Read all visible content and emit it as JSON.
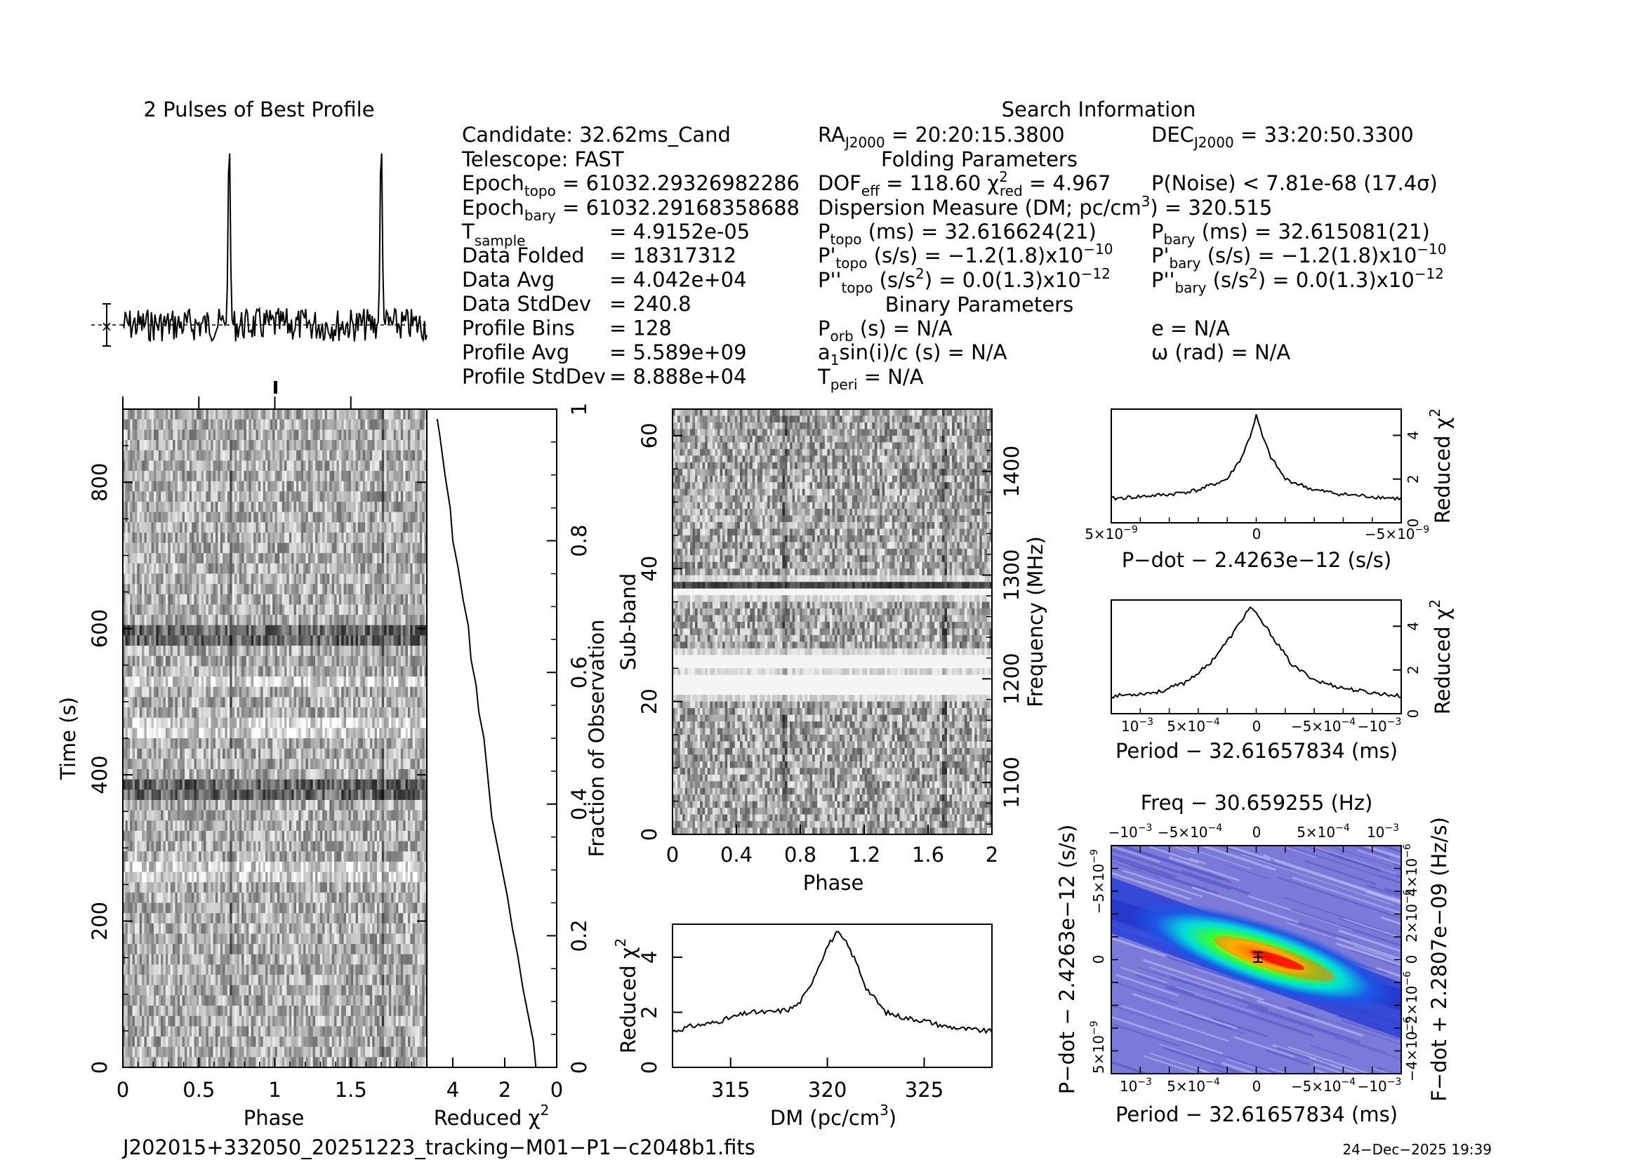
{
  "prof": {
    "title": "2 Pulses of Best Profile"
  },
  "info": {
    "title": "Search Information",
    "candidate": "Candidate:  32.62ms_Cand",
    "telescope": "Telescope:  FAST",
    "epoch_topo_lbl": "Epoch",
    "epoch_topo_sub": "topo",
    "epoch_topo_val": " = 61032.29326982286",
    "epoch_bary_lbl": "Epoch",
    "epoch_bary_sub": "bary",
    "epoch_bary_val": " = 61032.29168358688",
    "tsample_lbl": "T",
    "tsample_sub": "sample",
    "tsample_val": "=  4.9152e-05",
    "rows": [
      {
        "name": "Data Folded",
        "value": "=  18317312"
      },
      {
        "name": "Data Avg",
        "value": "=  4.042e+04"
      },
      {
        "name": "Data StdDev",
        "value": "=  240.8"
      },
      {
        "name": "Profile Bins",
        "value": "=  128"
      },
      {
        "name": "Profile Avg",
        "value": "=  5.589e+09"
      },
      {
        "name": "Profile StdDev",
        "value": "=  8.888e+04"
      }
    ],
    "ra_lbl": "RA",
    "ra_sub": "J2000",
    "ra_val": " = 20:20:15.3800",
    "dec_lbl": "DEC",
    "dec_sub": "J2000",
    "dec_val": " = 33:20:50.3300",
    "folding_title": "Folding Parameters",
    "dof_lbl": "DOF",
    "dof_sub": "eff",
    "dof_val": " = 118.60  ",
    "chi_lbl": "χ",
    "chi_sup": "2",
    "chi_sub": "red",
    "chi_val": " = 4.967",
    "pnoise": "P(Noise) < 7.81e-68   (17.4σ)",
    "dm_line": "Dispersion Measure (DM; pc/cm",
    "dm_sup": "3",
    "dm_val": ") = 320.515",
    "ptopo_lbl": "P",
    "ptopo_sub": "topo",
    "ptopo_val": " (ms) =  32.616624(21)",
    "pbary_lbl": "P",
    "pbary_sub": "bary",
    "pbary_val": " (ms) =  32.615081(21)",
    "pdtopo_lbl": "P'",
    "pdtopo_sub": "topo",
    "pdtopo_val": " (s/s) = −1.2(1.8)x10",
    "pdtopo_exp": "−10",
    "pdbary_lbl": "P'",
    "pdbary_sub": "bary",
    "pdbary_val": " (s/s) = −1.2(1.8)x10",
    "pdbary_exp": "−10",
    "pddtopo_lbl": "P''",
    "pddtopo_sub": "topo",
    "pddtopo_val": " (s/s",
    "pddtopo_sup": "2",
    "pddtopo_val2": ") = 0.0(1.3)x10",
    "pddtopo_exp": "−12",
    "pddbary_lbl": "P''",
    "pddbary_sub": "bary",
    "pddbary_val": " (s/s",
    "pddbary_sup": "2",
    "pddbary_val2": ") = 0.0(1.3)x10",
    "pddbary_exp": "−12",
    "binary_title": "Binary Parameters",
    "porb_lbl": "P",
    "porb_sub": "orb",
    "porb_val": " (s) = N/A",
    "a1_lbl": "a",
    "a1_sub": "1",
    "a1_val": "sin(i)/c (s) = N/A",
    "tperi_lbl": "T",
    "tperi_sub": "peri",
    "tperi_val": " = N/A",
    "ecc": "e = N/A",
    "omega": "ω (rad) = N/A"
  },
  "tp": {
    "xlabel": "Phase",
    "ylabel": "Time (s)",
    "yticks": [
      "0",
      "200",
      "400",
      "600",
      "800"
    ],
    "xticks": [
      "0",
      "0.5",
      "1",
      "1.5"
    ]
  },
  "rc": {
    "xlabel_main": "Reduced ",
    "xlabel_chi": "χ",
    "xlabel_sup": "2",
    "xticks": [
      "4",
      "2",
      "0"
    ],
    "ylabel_right": "Fraction of Observation",
    "yticks": [
      "0",
      "0.2",
      "0.4",
      "0.6",
      "0.8",
      "1"
    ]
  },
  "sb": {
    "xlabel": "Phase",
    "ylabel": "Sub-band",
    "ylabel_right": "Frequency (MHz)",
    "yticks": [
      "0",
      "20",
      "40",
      "60"
    ],
    "freq_ticks": [
      "1100",
      "1200",
      "1300",
      "1400"
    ],
    "xticks": [
      "0",
      "0.4",
      "0.8",
      "1.2",
      "1.6",
      "2"
    ]
  },
  "dm": {
    "xlabel_main": "DM (pc/cm",
    "xlabel_sup": "3",
    "xlabel_end": ")",
    "ylabel_main": "Reduced ",
    "ylabel_chi": "χ",
    "ylabel_sup": "2",
    "xticks": [
      "315",
      "320",
      "325"
    ],
    "yticks": [
      "0",
      "2",
      "4"
    ]
  },
  "pd": {
    "xlabel": "P−dot − 2.4263e−12 (s/s)",
    "ylabel_main": "Reduced ",
    "ylabel_chi": "χ",
    "ylabel_sup": "2",
    "yticks": [
      "0",
      "2",
      "4"
    ],
    "xticks_l": "5×10",
    "xticks_l_exp": "−9",
    "xticks_c": "0",
    "xticks_r": "−5×10",
    "xticks_r_exp": "−9"
  },
  "pp": {
    "xlabel": "Period − 32.61657834 (ms)",
    "ylabel_main": "Reduced ",
    "ylabel_chi": "χ",
    "ylabel_sup": "2",
    "yticks": [
      "0",
      "2",
      "4"
    ],
    "xt1": "10",
    "xt1_exp": "−3",
    "xt2": "5×10",
    "xt2_exp": "−4",
    "xt3": "0",
    "xt4": "−5×10",
    "xt4_exp": "−4",
    "xt5": "−10",
    "xt5_exp": "−3"
  },
  "ppd": {
    "top_title": "Freq − 30.659255 (Hz)",
    "top_t1": "−10",
    "top_t1_exp": "−3",
    "top_t2": "−5×10",
    "top_t2_exp": "−4",
    "top_t3": "0",
    "top_t4": "5×10",
    "top_t4_exp": "−4",
    "top_t5": "10",
    "top_t5_exp": "−3",
    "xlabel": "Period − 32.61657834 (ms)",
    "bt1": "10",
    "bt1_exp": "−3",
    "bt2": "5×10",
    "bt2_exp": "−4",
    "bt3": "0",
    "bt4": "−5×10",
    "bt4_exp": "−4",
    "bt5": "−10",
    "bt5_exp": "−3",
    "ylabel": "P−dot − 2.4263e−12 (s/s)",
    "ly_top": "−5×10",
    "ly_top_exp": "−9",
    "ly_mid": "0",
    "ly_bot": "5×10",
    "ly_bot_exp": "−9",
    "ylabel_right": "F−dot + 2.2807e−09 (Hz/s)",
    "ry1": "4×10",
    "ry1_exp": "−6",
    "ry2": "2×10",
    "ry2_exp": "−6",
    "ry3": "0",
    "ry4": "−2×10",
    "ry4_exp": "−6",
    "ry5": "−4×10",
    "ry5_exp": "−6"
  },
  "footer": {
    "filename": "J202015+332050_20251223_tracking−M01−P1−c2048b1.fits",
    "datetime": "24−Dec−2025 19:39"
  },
  "chart_data": [
    {
      "type": "line",
      "title": "2 Pulses of Best Profile",
      "xlim": [
        0,
        2
      ],
      "pulse_phases": [
        0.7,
        1.7
      ]
    },
    {
      "type": "heatmap",
      "xlabel": "Phase",
      "ylabel": "Time (s)",
      "xlim": [
        0,
        2
      ],
      "ylim": [
        0,
        900
      ]
    },
    {
      "type": "line",
      "xlabel": "Reduced χ2",
      "ylabel": "Fraction of Observation",
      "xlim": [
        5,
        0
      ],
      "ylim": [
        0,
        1
      ],
      "x": [
        0.8,
        0.9,
        1.1,
        1.3,
        1.5,
        1.7,
        1.9,
        2.1,
        2.3,
        2.5,
        2.6,
        2.7,
        2.8,
        3.0,
        3.1,
        3.3,
        3.4,
        3.6,
        3.8,
        4.0,
        4.1,
        4.3,
        4.5
      ],
      "y": [
        0,
        0.04,
        0.08,
        0.12,
        0.17,
        0.21,
        0.26,
        0.3,
        0.34,
        0.38,
        0.42,
        0.46,
        0.5,
        0.54,
        0.58,
        0.62,
        0.67,
        0.71,
        0.76,
        0.8,
        0.85,
        0.9,
        0.96
      ]
    },
    {
      "type": "heatmap",
      "xlabel": "Phase",
      "ylabel": "Sub-band",
      "xlim": [
        0,
        2
      ],
      "ylim": [
        0,
        64
      ]
    },
    {
      "type": "line",
      "xlabel": "DM (pc/cm3)",
      "ylabel": "Reduced χ2",
      "xlim": [
        312,
        328.5
      ],
      "ylim": [
        0,
        5.2
      ],
      "x": [
        312,
        313,
        314,
        315,
        316,
        317,
        318,
        318.5,
        319,
        319.5,
        320,
        320.5,
        321,
        321.5,
        322,
        323,
        324,
        325,
        326,
        327,
        328.5
      ],
      "y": [
        1.3,
        1.5,
        1.6,
        1.8,
        2.0,
        2.0,
        2.1,
        2.3,
        2.8,
        3.6,
        4.4,
        4.9,
        4.5,
        3.8,
        2.9,
        2.0,
        1.8,
        1.7,
        1.5,
        1.4,
        1.3
      ]
    },
    {
      "type": "line",
      "xlabel": "P-dot − 2.4263e−12 (s/s)",
      "ylabel": "Reduced χ2",
      "xlim": [
        5e-09,
        -5e-09
      ],
      "ylim": [
        0,
        5.2
      ],
      "x": [
        5e-09,
        3e-09,
        2e-09,
        1e-09,
        5e-10,
        2e-10,
        0,
        -2e-10,
        -5e-10,
        -1e-09,
        -2e-09,
        -3e-09,
        -5e-09
      ],
      "y": [
        1.1,
        1.3,
        1.5,
        2.0,
        3.0,
        4.0,
        4.9,
        4.0,
        3.0,
        2.0,
        1.5,
        1.3,
        1.1
      ]
    },
    {
      "type": "line",
      "xlabel": "Period − 32.61657834 (ms)",
      "ylabel": "Reduced χ2",
      "xlim": [
        0.0012,
        -0.0012
      ],
      "ylim": [
        0,
        5.2
      ],
      "x": [
        0.0012,
        0.001,
        0.0008,
        0.0006,
        0.0004,
        0.0002,
        5e-05,
        -0.0001,
        -0.0003,
        -0.0005,
        -0.0007,
        -0.0009,
        -0.0012
      ],
      "y": [
        0.8,
        0.9,
        1.0,
        1.4,
        2.2,
        3.6,
        4.9,
        3.8,
        2.2,
        1.5,
        1.2,
        1.0,
        0.8
      ]
    },
    {
      "type": "heatmap",
      "xlabel": "Period − 32.61657834 (ms)",
      "ylabel": "P-dot − 2.4263e−12 (s/s)",
      "xlim": [
        0.0012,
        -0.0012
      ],
      "ylim": [
        5e-09,
        -5e-09
      ]
    }
  ]
}
